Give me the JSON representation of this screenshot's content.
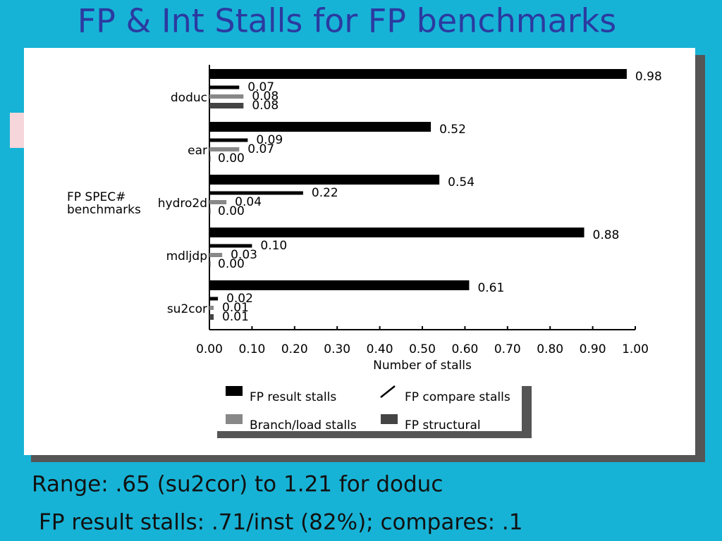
{
  "page": {
    "title": "FP & Int Stalls for FP benchmarks",
    "notes": [
      "Range: .65 (su2cor) to 1.21 for doduc",
      "FP result stalls: .71/inst (82%); compares: .1"
    ]
  },
  "chart_data": {
    "type": "hbar",
    "categories": [
      "doduc",
      "ear",
      "hydro2d",
      "mdljdp",
      "su2cor"
    ],
    "series": [
      {
        "name": "FP result stalls",
        "color": "#000000",
        "values": [
          0.98,
          0.52,
          0.54,
          0.88,
          0.61
        ],
        "value_labels": [
          "0.98",
          "0.52",
          "0.54",
          "0.88",
          "0.61"
        ]
      },
      {
        "name": "FP compare stalls",
        "color": "#000000",
        "values": [
          0.07,
          0.09,
          0.22,
          0.1,
          0.02
        ],
        "value_labels": [
          "0.07",
          "0.09",
          "0.22",
          "0.10",
          "0.02"
        ]
      },
      {
        "name": "Branch/load stalls",
        "color": "#888888",
        "values": [
          0.08,
          0.07,
          0.04,
          0.03,
          0.01
        ],
        "value_labels": [
          "0.08",
          "0.07",
          "0.04",
          "0.03",
          "0.01"
        ]
      },
      {
        "name": "FP structural",
        "color": "#444444",
        "values": [
          0.08,
          0,
          0,
          0,
          0.01
        ],
        "value_labels": [
          "0.08",
          "0.00",
          "0.00",
          "0.00",
          "0.01"
        ]
      }
    ],
    "xlabel": "Number of stalls",
    "ylabel": [
      "FP SPEC#",
      "benchmarks"
    ],
    "xlim": [
      0,
      1
    ],
    "xticks": [
      {
        "value": 0,
        "label": "0.00"
      },
      {
        "value": 0.1,
        "label": "0.10"
      },
      {
        "value": 0.2,
        "label": "0.20"
      },
      {
        "value": 0.3,
        "label": "0.30"
      },
      {
        "value": 0.4,
        "label": "0.40"
      },
      {
        "value": 0.5,
        "label": "0.50"
      },
      {
        "value": 0.6,
        "label": "0.60"
      },
      {
        "value": 0.7,
        "label": "0.70"
      },
      {
        "value": 0.8,
        "label": "0.80"
      },
      {
        "value": 0.9,
        "label": "0.90"
      },
      {
        "value": 1,
        "label": "1.00"
      }
    ]
  }
}
